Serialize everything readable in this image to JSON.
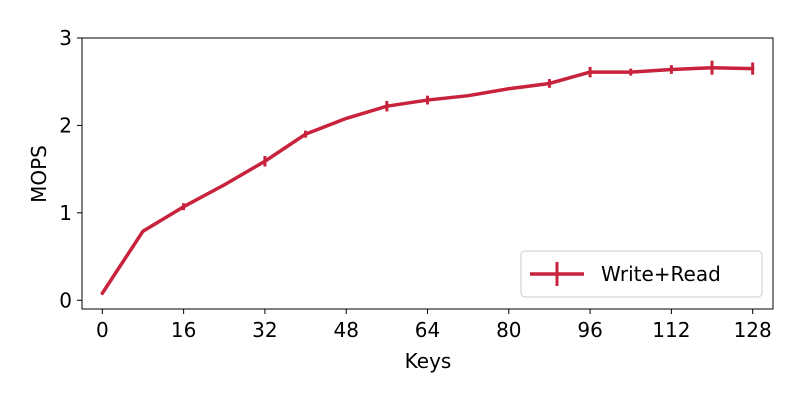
{
  "chart_data": {
    "type": "line",
    "title": "",
    "xlabel": "Keys",
    "ylabel": "MOPS",
    "xlim": [
      -4,
      132
    ],
    "ylim": [
      -0.1,
      3.0
    ],
    "xticks": [
      0,
      16,
      32,
      48,
      64,
      80,
      96,
      112,
      128
    ],
    "xtick_labels": [
      "0",
      "16",
      "32",
      "48",
      "64",
      "80",
      "96",
      "112",
      "128"
    ],
    "yticks": [
      0,
      1,
      2,
      3
    ],
    "ytick_labels": [
      "0",
      "1",
      "2",
      "3"
    ],
    "grid": false,
    "legend_position": "bottom-right",
    "series": [
      {
        "name": "Write+Read",
        "color": "#c8223c",
        "x": [
          0,
          8,
          16,
          24,
          32,
          40,
          48,
          56,
          64,
          72,
          80,
          88,
          96,
          104,
          112,
          120,
          128
        ],
        "y": [
          0.08,
          0.79,
          1.07,
          1.32,
          1.59,
          1.9,
          2.08,
          2.22,
          2.29,
          2.34,
          2.42,
          2.48,
          2.61,
          2.61,
          2.64,
          2.66,
          2.65
        ],
        "err": [
          0.0,
          0.0,
          0.04,
          0.0,
          0.06,
          0.04,
          0.0,
          0.06,
          0.05,
          0.0,
          0.0,
          0.05,
          0.06,
          0.04,
          0.05,
          0.08,
          0.07
        ]
      }
    ]
  }
}
